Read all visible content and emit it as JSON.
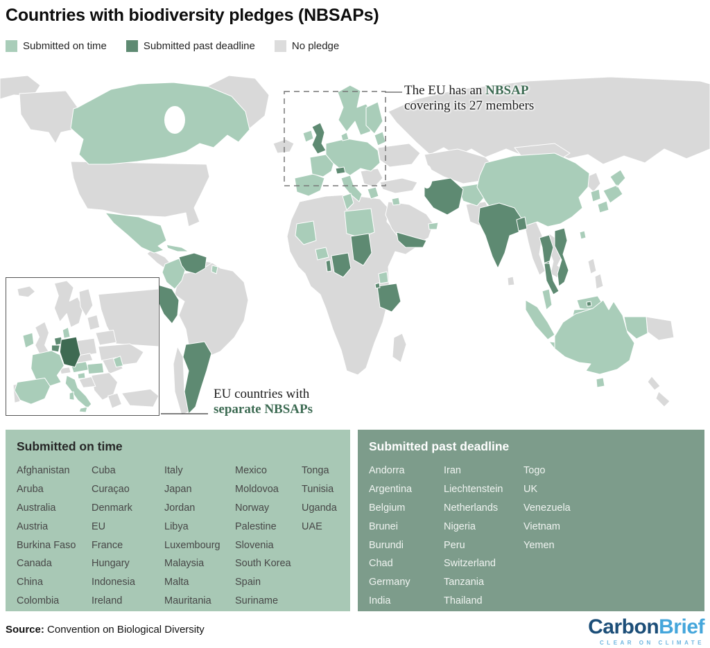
{
  "title": "Countries with biodiversity pledges (NBSAPs)",
  "legend": {
    "items": [
      {
        "name": "on-time",
        "label": "Submitted on time",
        "color": "#a9cdb9"
      },
      {
        "name": "past-deadline",
        "label": "Submitted past deadline",
        "color": "#5e8a72"
      },
      {
        "name": "no-pledge",
        "label": "No pledge",
        "color": "#dcdcdc"
      }
    ]
  },
  "annotations": {
    "eu": {
      "line1_prefix": "The EU has an ",
      "line1_highlight": "NBSAP",
      "line2": "covering its 27 members"
    },
    "inset": {
      "line1": "EU countries with",
      "line2_highlight": "separate NBSAPs"
    }
  },
  "chart_data": {
    "type": "heatmap",
    "title": "Countries with biodiversity pledges (NBSAPs)",
    "legend_position": "top",
    "categories": [
      "Submitted on time",
      "Submitted past deadline",
      "No pledge"
    ],
    "series": [
      {
        "name": "Submitted on time",
        "values": [
          "Afghanistan",
          "Aruba",
          "Australia",
          "Austria",
          "Burkina Faso",
          "Canada",
          "China",
          "Colombia",
          "Cuba",
          "Curaçao",
          "Denmark",
          "EU",
          "France",
          "Hungary",
          "Indonesia",
          "Ireland",
          "Italy",
          "Japan",
          "Jordan",
          "Libya",
          "Luxembourg",
          "Malaysia",
          "Malta",
          "Mauritania",
          "Mexico",
          "Moldovoa",
          "Norway",
          "Palestine",
          "Slovenia",
          "South Korea",
          "Spain",
          "Suriname",
          "Tonga",
          "Tunisia",
          "Uganda",
          "UAE"
        ]
      },
      {
        "name": "Submitted past deadline",
        "values": [
          "Andorra",
          "Argentina",
          "Belgium",
          "Brunei",
          "Burundi",
          "Chad",
          "Germany",
          "India",
          "Iran",
          "Liechtenstein",
          "Netherlands",
          "Nigeria",
          "Peru",
          "Switzerland",
          "Tanzania",
          "Thailand",
          "Togo",
          "UK",
          "Venezuela",
          "Vietnam",
          "Yemen"
        ]
      }
    ]
  },
  "lists": {
    "on_time": {
      "title": "Submitted on time",
      "columns": [
        [
          "Afghanistan",
          "Aruba",
          "Australia",
          "Austria",
          "Burkina Faso",
          "Canada",
          "China",
          "Colombia"
        ],
        [
          "Cuba",
          "Curaçao",
          "Denmark",
          "EU",
          "France",
          "Hungary",
          "Indonesia",
          "Ireland"
        ],
        [
          "Italy",
          "Japan",
          "Jordan",
          "Libya",
          "Luxembourg",
          "Malaysia",
          "Malta",
          "Mauritania"
        ],
        [
          "Mexico",
          "Moldovoa",
          "Norway",
          "Palestine",
          "Slovenia",
          "South Korea",
          "Spain",
          "Suriname"
        ],
        [
          "Tonga",
          "Tunisia",
          "Uganda",
          "UAE"
        ]
      ]
    },
    "past_deadline": {
      "title": "Submitted past deadline",
      "columns": [
        [
          "Andorra",
          "Argentina",
          "Belgium",
          "Brunei",
          "Burundi",
          "Chad",
          "Germany",
          "India"
        ],
        [
          "Iran",
          "Liechtenstein",
          "Netherlands",
          "Nigeria",
          "Peru",
          "Switzerland",
          "Tanzania",
          "Thailand"
        ],
        [
          "Togo",
          "UK",
          "Venezuela",
          "Vietnam",
          "Yemen"
        ]
      ]
    }
  },
  "source": {
    "label": "Source:",
    "text": " Convention on Biological Diversity"
  },
  "logo": {
    "part1": "Carbon",
    "part2": "Brief",
    "tagline": "CLEAR ON CLIMATE"
  },
  "colors": {
    "on_time": "#a9cdb9",
    "past_deadline": "#5e8a72",
    "no_pledge": "#d9d9d9",
    "germany_dark": "#3e6a52",
    "accent_green": "#3d6b53",
    "box_on": "#a8c8b5",
    "box_past": "#7d9c8b",
    "logo_dark_blue": "#1c4e78",
    "logo_light_blue": "#45a6db"
  }
}
